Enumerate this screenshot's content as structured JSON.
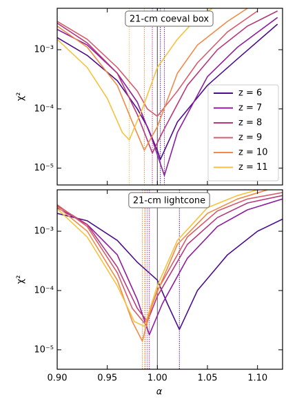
{
  "chart_data": [
    {
      "type": "line",
      "annotation": "21-cm coeval box",
      "ylabel": "χ²",
      "log_y": true,
      "ylim": [
        5.2e-06,
        0.005
      ],
      "yticks": [
        {
          "value": 1e-05,
          "label": "10⁻⁵"
        },
        {
          "value": 0.0001,
          "label": "10⁻⁴"
        },
        {
          "value": 0.001,
          "label": "10⁻³"
        }
      ],
      "xlim": [
        0.9,
        1.125
      ],
      "reference_x": 1.0,
      "legend": "lower right",
      "series": [
        {
          "name": "z = 6",
          "color": "#4b0c8c",
          "best_fit": 1.003,
          "x": [
            0.9,
            0.93,
            0.96,
            0.98,
            0.99,
            1.0,
            1.003,
            1.02,
            1.05,
            1.08,
            1.12
          ],
          "values": [
            0.0016,
            0.0008,
            0.0003,
            0.0001,
            5e-05,
            2e-05,
            1.4e-05,
            6e-05,
            0.00025,
            0.0007,
            0.0027
          ]
        },
        {
          "name": "z = 7",
          "color": "#8c1ba0",
          "best_fit": 1.007,
          "x": [
            0.9,
            0.93,
            0.96,
            0.98,
            0.995,
            1.007,
            1.02,
            1.05,
            1.08,
            1.12
          ],
          "values": [
            0.0022,
            0.0012,
            0.0004,
            0.00013,
            3e-05,
            7.5e-06,
            4e-05,
            0.00035,
            0.0011,
            0.0035
          ]
        },
        {
          "name": "z = 8",
          "color": "#b6377c",
          "best_fit": 0.995,
          "x": [
            0.9,
            0.93,
            0.96,
            0.98,
            0.995,
            1.005,
            1.03,
            1.06,
            1.09,
            1.12
          ],
          "values": [
            0.0028,
            0.0013,
            0.0004,
            8e-05,
            1.8e-05,
            4e-05,
            0.00025,
            0.001,
            0.0025,
            0.0045
          ]
        },
        {
          "name": "z = 9",
          "color": "#d65c6c",
          "best_fit": 1.0,
          "x": [
            0.9,
            0.93,
            0.96,
            0.98,
            0.99,
            1.0,
            1.02,
            1.04,
            1.07,
            1.1
          ],
          "values": [
            0.003,
            0.0015,
            0.0005,
            0.0002,
            0.0001,
            7.5e-05,
            0.0002,
            0.0006,
            0.002,
            0.0045
          ]
        },
        {
          "name": "z = 10",
          "color": "#ef8a48",
          "best_fit": 0.987,
          "x": [
            0.9,
            0.93,
            0.96,
            0.975,
            0.987,
            1.0,
            1.02,
            1.04,
            1.07,
            1.09
          ],
          "values": [
            0.0025,
            0.0011,
            0.00025,
            6e-05,
            2e-05,
            5e-05,
            0.0004,
            0.0012,
            0.003,
            0.005
          ]
        },
        {
          "name": "z = 11",
          "color": "#f6c23e",
          "best_fit": 0.972,
          "x": [
            0.9,
            0.93,
            0.95,
            0.965,
            0.972,
            0.985,
            1.0,
            1.02,
            1.04,
            1.055
          ],
          "values": [
            0.0015,
            0.0005,
            0.00015,
            4e-05,
            3e-05,
            0.0001,
            0.0005,
            0.0015,
            0.0035,
            0.005
          ]
        }
      ]
    },
    {
      "type": "line",
      "annotation": "21-cm lightcone",
      "ylabel": "χ²",
      "xlabel": "α",
      "log_y": true,
      "ylim": [
        4.7e-06,
        0.005
      ],
      "yticks": [
        {
          "value": 1e-05,
          "label": "10⁻⁵"
        },
        {
          "value": 0.0001,
          "label": "10⁻⁴"
        },
        {
          "value": 0.001,
          "label": "10⁻³"
        }
      ],
      "xlim": [
        0.9,
        1.125
      ],
      "reference_x": 1.0,
      "xticks": [
        {
          "value": 0.9,
          "label": "0.90"
        },
        {
          "value": 0.95,
          "label": "0.95"
        },
        {
          "value": 1.0,
          "label": "1.00"
        },
        {
          "value": 1.05,
          "label": "1.05"
        },
        {
          "value": 1.1,
          "label": "1.10"
        }
      ],
      "series": [
        {
          "color": "#4b0c8c",
          "best_fit": 1.022,
          "x": [
            0.9,
            0.93,
            0.96,
            0.98,
            1.0,
            1.01,
            1.022,
            1.04,
            1.07,
            1.1,
            1.125
          ],
          "values": [
            0.002,
            0.0015,
            0.0007,
            0.0003,
            0.00015,
            6e-05,
            2.2e-05,
            0.0001,
            0.0004,
            0.001,
            0.0016
          ]
        },
        {
          "color": "#8c1ba0",
          "best_fit": 0.992,
          "x": [
            0.9,
            0.93,
            0.96,
            0.98,
            0.992,
            1.005,
            1.03,
            1.06,
            1.09,
            1.125
          ],
          "values": [
            0.0025,
            0.0013,
            0.0004,
            7e-05,
            1.8e-05,
            6e-05,
            0.00035,
            0.0012,
            0.0023,
            0.0035
          ]
        },
        {
          "color": "#b6377c",
          "best_fit": 0.99,
          "x": [
            0.9,
            0.93,
            0.96,
            0.98,
            0.99,
            1.0,
            1.03,
            1.06,
            1.09,
            1.125
          ],
          "values": [
            0.0027,
            0.0013,
            0.00025,
            5e-05,
            3e-05,
            8e-05,
            0.0006,
            0.0017,
            0.003,
            0.004
          ]
        },
        {
          "color": "#d65c6c",
          "best_fit": 0.988,
          "x": [
            0.9,
            0.93,
            0.96,
            0.975,
            0.988,
            1.0,
            1.03,
            1.06,
            1.09,
            1.125
          ],
          "values": [
            0.0028,
            0.0012,
            0.0002,
            5e-05,
            2.7e-05,
            0.0001,
            0.0008,
            0.0022,
            0.0035,
            0.0045
          ]
        },
        {
          "color": "#ef8a48",
          "best_fit": 0.985,
          "x": [
            0.9,
            0.93,
            0.96,
            0.975,
            0.985,
            0.995,
            1.02,
            1.05,
            1.08,
            1.11
          ],
          "values": [
            0.0026,
            0.001,
            0.00015,
            3e-05,
            1.4e-05,
            6e-05,
            0.0006,
            0.002,
            0.0035,
            0.005
          ]
        },
        {
          "color": "#f6c23e",
          "best_fit": 0.987,
          "x": [
            0.9,
            0.93,
            0.96,
            0.977,
            0.987,
            1.0,
            1.02,
            1.05,
            1.08,
            1.1
          ],
          "values": [
            0.0024,
            0.0008,
            0.00012,
            3e-05,
            2.5e-05,
            0.00012,
            0.0007,
            0.0025,
            0.004,
            0.005
          ]
        }
      ]
    }
  ]
}
